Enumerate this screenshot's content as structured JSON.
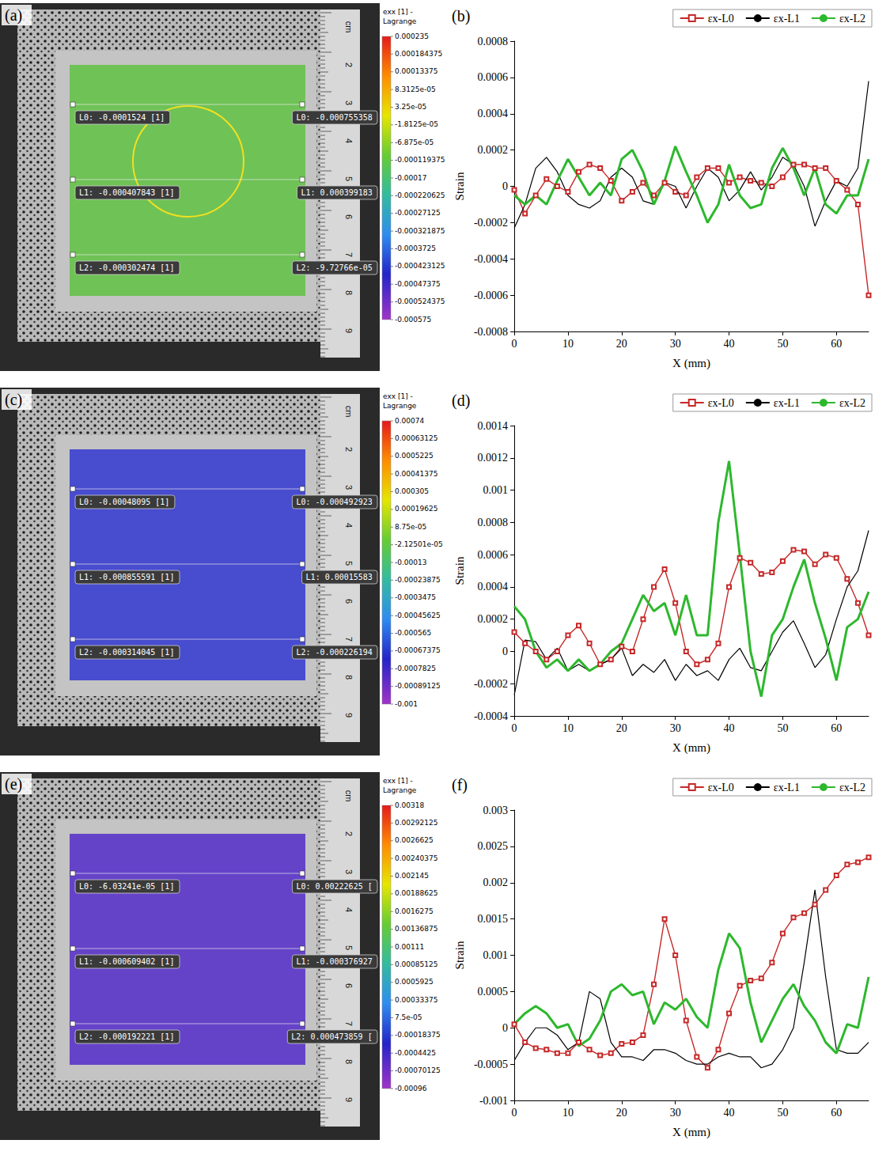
{
  "chart_data": [
    {
      "type": "line",
      "panel": "(b)",
      "x_label": "X (mm)",
      "y_label": "Strain",
      "legend": "top-right",
      "grid": false,
      "xlim": [
        0,
        66
      ],
      "xticks": [
        0,
        10,
        20,
        30,
        40,
        50,
        60
      ],
      "ylim": [
        -0.0008,
        0.0008
      ],
      "yticks": [
        -0.0008,
        -0.0006,
        -0.0004,
        -0.0002,
        0,
        0.0002,
        0.0004,
        0.0006,
        0.0008
      ],
      "x": [
        0,
        2,
        4,
        6,
        8,
        10,
        12,
        14,
        16,
        18,
        20,
        22,
        24,
        26,
        28,
        30,
        32,
        34,
        36,
        38,
        40,
        42,
        44,
        46,
        48,
        50,
        52,
        54,
        56,
        58,
        60,
        62,
        64,
        66
      ],
      "series": [
        {
          "name": "εx-L0",
          "color": "#c62828",
          "marker": "square",
          "line_style": "solid",
          "values": [
            -2e-05,
            -0.00015,
            -5e-05,
            4e-05,
            0,
            -3e-05,
            8e-05,
            0.00012,
            0.0001,
            3e-05,
            -8e-05,
            -3e-05,
            2e-05,
            -5e-05,
            2e-05,
            -3e-05,
            -5e-05,
            5e-05,
            0.0001,
            0.0001,
            2e-05,
            5e-05,
            3e-05,
            2e-05,
            0,
            5e-05,
            0.00012,
            0.00012,
            0.0001,
            0.0001,
            3e-05,
            -2e-05,
            -0.0001,
            -0.0006
          ]
        },
        {
          "name": "εx-L1",
          "color": "#000000",
          "marker": "none",
          "line_style": "solid",
          "values": [
            -0.00023,
            -0.0001,
            0.0001,
            0.00016,
            8e-05,
            -5e-05,
            -0.0001,
            -0.00012,
            -8e-05,
            5e-05,
            0.0001,
            5e-05,
            -8e-05,
            -0.0001,
            2e-05,
            0,
            -0.00012,
            0,
            0.0001,
            5e-05,
            -8e-05,
            -2e-05,
            8e-05,
            -2e-05,
            5e-05,
            0.00016,
            0.00012,
            0,
            -0.00022,
            -8e-05,
            3e-05,
            0,
            0.0001,
            0.00058
          ]
        },
        {
          "name": "εx-L2",
          "color": "#2db82d",
          "marker": "none",
          "line_style": "solid",
          "values": [
            -5e-05,
            -0.0001,
            -5e-05,
            -0.0001,
            3e-05,
            0.00015,
            5e-05,
            -5e-05,
            2e-05,
            -5e-05,
            0.00015,
            0.0002,
            8e-05,
            -0.0001,
            3e-05,
            0.00022,
            8e-05,
            -5e-05,
            -0.0002,
            -0.0001,
            0.00012,
            -5e-05,
            -0.00012,
            -0.0001,
            0.0001,
            0.00021,
            0.0001,
            -5e-05,
            0.0001,
            -0.0001,
            -0.00015,
            -5e-05,
            -5e-05,
            0.00015
          ]
        }
      ]
    },
    {
      "type": "line",
      "panel": "(d)",
      "x_label": "X (mm)",
      "y_label": "Strain",
      "legend": "top-right",
      "grid": false,
      "xlim": [
        0,
        66
      ],
      "xticks": [
        0,
        10,
        20,
        30,
        40,
        50,
        60
      ],
      "ylim": [
        -0.0004,
        0.0014
      ],
      "yticks": [
        -0.0004,
        -0.0002,
        0,
        0.0002,
        0.0004,
        0.0006,
        0.0008,
        0.001,
        0.0012,
        0.0014
      ],
      "x": [
        0,
        2,
        4,
        6,
        8,
        10,
        12,
        14,
        16,
        18,
        20,
        22,
        24,
        26,
        28,
        30,
        32,
        34,
        36,
        38,
        40,
        42,
        44,
        46,
        48,
        50,
        52,
        54,
        56,
        58,
        60,
        62,
        64,
        66
      ],
      "series": [
        {
          "name": "εx-L0",
          "color": "#c62828",
          "marker": "square",
          "line_style": "solid",
          "values": [
            0.00012,
            5e-05,
            0,
            -5e-05,
            0,
            0.0001,
            0.00016,
            5e-05,
            -8e-05,
            -5e-05,
            3e-05,
            0,
            0.0002,
            0.0004,
            0.00051,
            0.0003,
            0,
            -8e-05,
            -5e-05,
            5e-05,
            0.0004,
            0.00058,
            0.00055,
            0.00048,
            0.00049,
            0.00056,
            0.00063,
            0.00062,
            0.00054,
            0.0006,
            0.00058,
            0.00045,
            0.0003,
            0.0001
          ]
        },
        {
          "name": "εx-L1",
          "color": "#000000",
          "marker": "none",
          "line_style": "solid",
          "values": [
            -0.00027,
            7e-05,
            6e-05,
            -5e-05,
            2e-05,
            -0.00012,
            -8e-05,
            -0.00012,
            -8e-05,
            -5e-05,
            2e-05,
            -0.00015,
            -8e-05,
            -0.00013,
            -5e-05,
            -0.00018,
            -8e-05,
            -0.00015,
            -0.00012,
            -0.00018,
            -5e-05,
            2e-05,
            -0.0001,
            -0.00012,
            0,
            0.00012,
            0.00019,
            5e-05,
            -0.0001,
            -2e-05,
            0.0002,
            0.0004,
            0.0005,
            0.00075
          ]
        },
        {
          "name": "εx-L2",
          "color": "#2db82d",
          "marker": "none",
          "line_style": "solid",
          "values": [
            0.00028,
            0.0002,
            0,
            -0.0001,
            -5e-05,
            -0.00012,
            -5e-05,
            -0.00012,
            -8e-05,
            0,
            5e-05,
            0.0002,
            0.00035,
            0.00025,
            0.0003,
            0.0001,
            0.00035,
            0.0001,
            0.0001,
            0.0008,
            0.00118,
            0.0006,
            0,
            -0.00028,
            0.0001,
            0.0002,
            0.0004,
            0.00057,
            0.0003,
            8e-05,
            -0.00018,
            0.00015,
            0.0002,
            0.00037
          ]
        }
      ]
    },
    {
      "type": "line",
      "panel": "(f)",
      "x_label": "X (mm)",
      "y_label": "Strain",
      "legend": "top-right",
      "grid": false,
      "xlim": [
        0,
        66
      ],
      "xticks": [
        0,
        10,
        20,
        30,
        40,
        50,
        60
      ],
      "ylim": [
        -0.001,
        0.003
      ],
      "yticks": [
        -0.001,
        -0.0005,
        0,
        0.0005,
        0.001,
        0.0015,
        0.002,
        0.0025,
        0.003
      ],
      "x": [
        0,
        2,
        4,
        6,
        8,
        10,
        12,
        14,
        16,
        18,
        20,
        22,
        24,
        26,
        28,
        30,
        32,
        34,
        36,
        38,
        40,
        42,
        44,
        46,
        48,
        50,
        52,
        54,
        56,
        58,
        60,
        62,
        64,
        66
      ],
      "series": [
        {
          "name": "εx-L0",
          "color": "#c62828",
          "marker": "square",
          "line_style": "solid",
          "values": [
            5e-05,
            -0.0002,
            -0.00028,
            -0.0003,
            -0.00035,
            -0.00035,
            -0.0002,
            -0.0003,
            -0.00038,
            -0.00035,
            -0.00022,
            -0.0002,
            -0.0001,
            0.0006,
            0.0015,
            0.001,
            0.0001,
            -0.0004,
            -0.00055,
            -0.0003,
            0.0002,
            0.00058,
            0.00065,
            0.00068,
            0.0009,
            0.0013,
            0.00152,
            0.00158,
            0.0017,
            0.0019,
            0.0021,
            0.00225,
            0.00228,
            0.00235
          ]
        },
        {
          "name": "εx-L1",
          "color": "#000000",
          "marker": "none",
          "line_style": "solid",
          "values": [
            -0.00045,
            -0.0002,
            0,
            0,
            -0.0001,
            -0.0003,
            -0.0002,
            0.0005,
            0.0004,
            -0.0002,
            -0.0004,
            -0.0004,
            -0.00045,
            -0.0003,
            -0.0003,
            -0.00035,
            -0.00045,
            -0.0005,
            -0.0005,
            -0.0004,
            -0.00035,
            -0.0004,
            -0.0004,
            -0.00055,
            -0.0005,
            -0.0003,
            0,
            0.0009,
            0.0019,
            0.0007,
            -0.0003,
            -0.00035,
            -0.00035,
            -0.0002
          ]
        },
        {
          "name": "εx-L2",
          "color": "#2db82d",
          "marker": "none",
          "line_style": "solid",
          "values": [
            5e-05,
            0.0002,
            0.0003,
            0.0002,
            0,
            5e-05,
            -0.00025,
            -0.00015,
            0.0001,
            0.0005,
            0.0006,
            0.00045,
            0.0005,
            5e-05,
            0.00035,
            0.00025,
            0.0004,
            0.00015,
            0,
            0.0008,
            0.0013,
            0.0011,
            0.00035,
            -0.0002,
            0.0001,
            0.0004,
            0.0006,
            0.0003,
            0.0001,
            -0.0002,
            -0.00035,
            5e-05,
            0,
            0.0007
          ]
        }
      ]
    }
  ],
  "images": [
    {
      "panel": "(a)",
      "ruler": [
        "cm",
        "2",
        "3",
        "4",
        "5",
        "6",
        "7",
        "8",
        "9"
      ],
      "colorbar": {
        "title": [
          "exx [1] -",
          "Lagrange"
        ],
        "range": [
          -0.000575,
          0.000235
        ],
        "ticks": [
          {
            "value": 0.000235,
            "label": "0.000235"
          },
          {
            "value": 0.000184375,
            "label": "0.000184375"
          },
          {
            "value": 0.00013375,
            "label": "0.00013375"
          },
          {
            "value": 8.3125e-05,
            "label": "8.3125e-05"
          },
          {
            "value": 3.25e-05,
            "label": "3.25e-05"
          },
          {
            "value": -1.8125e-05,
            "label": "-1.8125e-05"
          },
          {
            "value": -6.875e-05,
            "label": "-6.875e-05"
          },
          {
            "value": -0.000119375,
            "label": "-0.000119375"
          },
          {
            "value": -0.00017,
            "label": "-0.00017"
          },
          {
            "value": -0.000220625,
            "label": "-0.000220625"
          },
          {
            "value": -0.00027125,
            "label": "-0.00027125"
          },
          {
            "value": -0.000321875,
            "label": "-0.000321875"
          },
          {
            "value": -0.0003725,
            "label": "-0.0003725"
          },
          {
            "value": -0.000423125,
            "label": "-0.000423125"
          },
          {
            "value": -0.00047375,
            "label": "-0.00047375"
          },
          {
            "value": -0.000524375,
            "label": "-0.000524375"
          },
          {
            "value": -0.000575,
            "label": "-0.000575"
          }
        ]
      },
      "lines": [
        {
          "left": "L0: -0.0001524 [1]",
          "right": "L0: -0.000755358"
        },
        {
          "left": "L1: -0.000407843 [1]",
          "right": "L1: 0.000399183"
        },
        {
          "left": "L2: -0.000302474 [1]",
          "right": "L2: -9.72766e-05"
        }
      ]
    },
    {
      "panel": "(c)",
      "ruler": [
        "cm",
        "2",
        "3",
        "4",
        "5",
        "6",
        "7",
        "8",
        "9"
      ],
      "colorbar": {
        "title": [
          "exx [1] -",
          "Lagrange"
        ],
        "range": [
          -0.001,
          0.00074
        ],
        "ticks": [
          {
            "value": 0.00074,
            "label": "0.00074"
          },
          {
            "value": 0.00063125,
            "label": "0.00063125"
          },
          {
            "value": 0.0005225,
            "label": "0.0005225"
          },
          {
            "value": 0.00041375,
            "label": "0.00041375"
          },
          {
            "value": 0.000305,
            "label": "0.000305"
          },
          {
            "value": 0.00019625,
            "label": "0.00019625"
          },
          {
            "value": 8.75e-05,
            "label": "8.75e-05"
          },
          {
            "value": -2.12501e-05,
            "label": "-2.12501e-05"
          },
          {
            "value": -0.00013,
            "label": "-0.00013"
          },
          {
            "value": -0.00023875,
            "label": "-0.00023875"
          },
          {
            "value": -0.0003475,
            "label": "-0.0003475"
          },
          {
            "value": -0.00045625,
            "label": "-0.00045625"
          },
          {
            "value": -0.000565,
            "label": "-0.000565"
          },
          {
            "value": -0.00067375,
            "label": "-0.00067375"
          },
          {
            "value": -0.0007825,
            "label": "-0.0007825"
          },
          {
            "value": -0.00089125,
            "label": "-0.00089125"
          },
          {
            "value": -0.001,
            "label": "-0.001"
          }
        ]
      },
      "lines": [
        {
          "left": "L0: -0.00048095 [1]",
          "right": "L0: -0.000492923"
        },
        {
          "left": "L1: -0.000855591 [1]",
          "right": "L1: 0.00015583"
        },
        {
          "left": "L2: -0.000314045 [1]",
          "right": "L2: -0.000226194"
        }
      ]
    },
    {
      "panel": "(e)",
      "ruler": [
        "cm",
        "2",
        "3",
        "4",
        "5",
        "6",
        "7",
        "8",
        "9"
      ],
      "colorbar": {
        "title": [
          "exx [1] -",
          "Lagrange"
        ],
        "range": [
          -0.00096,
          0.00318
        ],
        "ticks": [
          {
            "value": 0.00318,
            "label": "0.00318"
          },
          {
            "value": 0.00292125,
            "label": "0.00292125"
          },
          {
            "value": 0.0026625,
            "label": "0.0026625"
          },
          {
            "value": 0.00240375,
            "label": "0.00240375"
          },
          {
            "value": 0.002145,
            "label": "0.002145"
          },
          {
            "value": 0.00188625,
            "label": "0.00188625"
          },
          {
            "value": 0.0016275,
            "label": "0.0016275"
          },
          {
            "value": 0.00136875,
            "label": "0.00136875"
          },
          {
            "value": 0.00111,
            "label": "0.00111"
          },
          {
            "value": 0.00085125,
            "label": "0.00085125"
          },
          {
            "value": 0.0005925,
            "label": "0.0005925"
          },
          {
            "value": 0.00033375,
            "label": "0.00033375"
          },
          {
            "value": 7.5e-05,
            "label": "7.5e-05"
          },
          {
            "value": -0.00018375,
            "label": "-0.00018375"
          },
          {
            "value": -0.0004425,
            "label": "-0.0004425"
          },
          {
            "value": -0.00070125,
            "label": "-0.00070125"
          },
          {
            "value": -0.00096,
            "label": "-0.00096"
          }
        ]
      },
      "lines": [
        {
          "left": "L0: -6.03241e-05 [1]",
          "right": "L0: 0.00222625 ["
        },
        {
          "left": "L1: -0.000609402 [1]",
          "right": "L1: -0.000376927"
        },
        {
          "left": "L2: -0.000192221 [1]",
          "right": "L2: 0.000473859 ["
        }
      ]
    }
  ]
}
